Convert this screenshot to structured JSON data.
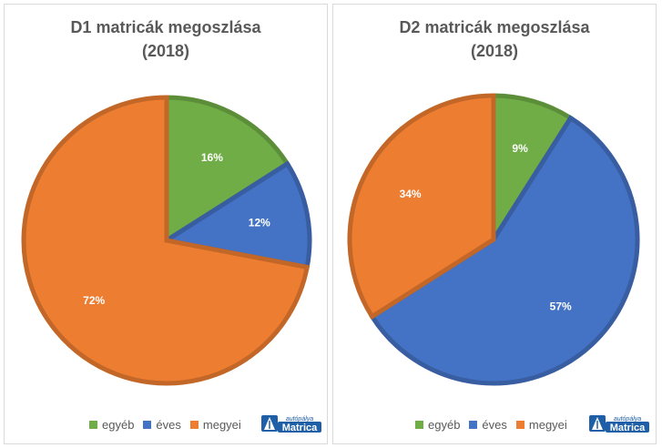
{
  "chart_data": [
    {
      "type": "pie",
      "title": "D1 matricák megoszlása",
      "subtitle": "(2018)",
      "categories": [
        "egyéb",
        "éves",
        "megyei"
      ],
      "values": [
        16,
        12,
        72
      ],
      "data_labels": [
        "16%",
        "12%",
        "72%"
      ],
      "colors": [
        "#70ad47",
        "#4472c4",
        "#ed7d31"
      ],
      "legend": "bottom"
    },
    {
      "type": "pie",
      "title": "D2 matricák megoszlása",
      "subtitle": "(2018)",
      "categories": [
        "egyéb",
        "éves",
        "megyei"
      ],
      "values": [
        9,
        57,
        34
      ],
      "data_labels": [
        "9%",
        "57%",
        "34%"
      ],
      "colors": [
        "#70ad47",
        "#4472c4",
        "#ed7d31"
      ],
      "legend": "bottom"
    }
  ],
  "logo": {
    "line1": "autópálya",
    "line2": "Matrica"
  }
}
